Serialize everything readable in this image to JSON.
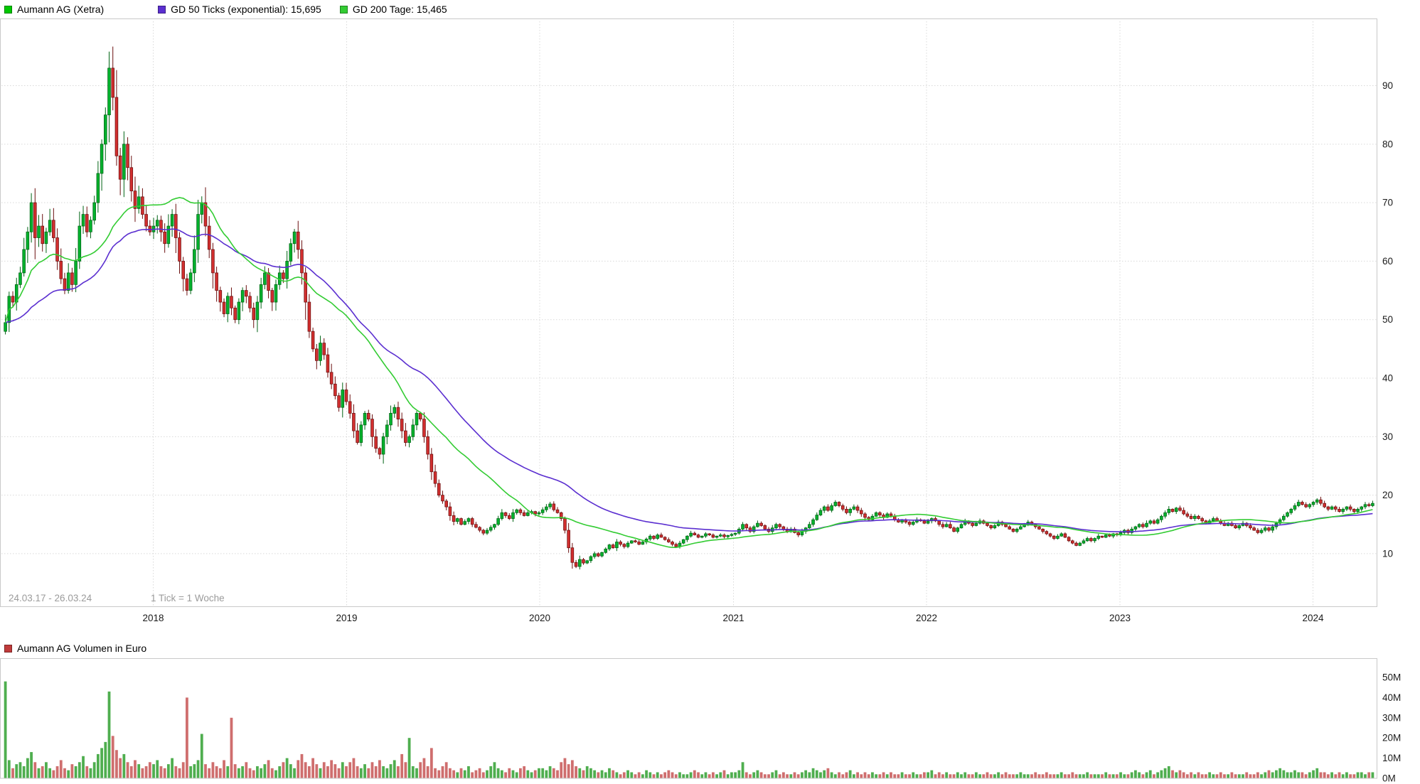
{
  "legend": {
    "items": [
      {
        "label": "Aumann AG (Xetra)",
        "color": "#00c800"
      },
      {
        "label": "GD 50 Ticks (exponential): 15,695",
        "color": "#5b2fd0"
      },
      {
        "label": "GD 200 Tage: 15,465",
        "color": "#33cc33"
      }
    ]
  },
  "volume_legend": {
    "label": "Aumann AG Volumen in Euro",
    "color": "#c03a3a"
  },
  "chart_data": {
    "type": "candlestick",
    "title": "Aumann AG (Xetra)",
    "series_name": "Aumann AG (Xetra)",
    "period_label": "24.03.17 - 26.03.24",
    "tick_label": "1 Tick = 1 Woche",
    "x_unit": "1 candle = 1 week",
    "year_labels": [
      "2018",
      "2019",
      "2020",
      "2021",
      "2022",
      "2023",
      "2024"
    ],
    "year_week_positions": [
      40.4,
      92.6,
      144.7,
      197.0,
      249.1,
      301.3,
      353.4
    ],
    "price_axis": {
      "ticks": [
        10,
        20,
        30,
        40,
        50,
        60,
        70,
        80,
        90
      ],
      "min": 1,
      "max": 101
    },
    "volume_axis": {
      "tick_labels": [
        "0M",
        "10M",
        "20M",
        "30M",
        "40M",
        "50M"
      ],
      "max_millions": 50
    },
    "indicators": [
      {
        "name": "GD 50 Ticks (exponential)",
        "legend_value": "15,695",
        "color": "#5b2fd0",
        "type": "ema",
        "period_weeks": 50
      },
      {
        "name": "GD 200 Tage",
        "legend_value": "15,465",
        "color": "#33cc33",
        "type": "sma",
        "period_weeks": 29
      }
    ],
    "candle_colors": {
      "up": "#00b22d",
      "down": "#d22f2f",
      "up_stroke": "#006414",
      "down_stroke": "#6b0f0f"
    },
    "volume_colors": {
      "up": "#4fae4f",
      "down": "#cf6e6e"
    },
    "volume_series_name": "Aumann AG Volumen in Euro",
    "first_open": 48,
    "weekly_closes": [
      49.5,
      54,
      53,
      56,
      58,
      62,
      65,
      70,
      64,
      66,
      63,
      65,
      67,
      64,
      60,
      57,
      55,
      58,
      56,
      60,
      66,
      68,
      65,
      67,
      70,
      75,
      80,
      85,
      93,
      88,
      78,
      74,
      80,
      76,
      72,
      69,
      71,
      68,
      66,
      65,
      66,
      67,
      65,
      63,
      66,
      68,
      64,
      60,
      57,
      55,
      58,
      62,
      68,
      70,
      66,
      62,
      58,
      55,
      53,
      51,
      54,
      52,
      50,
      53,
      55,
      54,
      52,
      50,
      53,
      56,
      58,
      55,
      53,
      56,
      58,
      57,
      60,
      63,
      65,
      62,
      58,
      53,
      48,
      45,
      43,
      46,
      44,
      41,
      39,
      37,
      35,
      38,
      36,
      34,
      31,
      29,
      32,
      34,
      33,
      30,
      28,
      27,
      30,
      32,
      34,
      35,
      33,
      31,
      29,
      30,
      32,
      34,
      33,
      30,
      27,
      24,
      22,
      20,
      19,
      18,
      16.5,
      15.5,
      16,
      15,
      15.5,
      16,
      15,
      14.5,
      14,
      13.5,
      14,
      14.5,
      15,
      16,
      17,
      16.5,
      16,
      17,
      17.5,
      17,
      16.5,
      17,
      17.2,
      16.8,
      17,
      17.5,
      18,
      18.5,
      17.5,
      17,
      16,
      14,
      11,
      8.5,
      7.8,
      9,
      8.4,
      8.8,
      9.5,
      10,
      9.6,
      10.2,
      10.8,
      11.5,
      11,
      12,
      11.6,
      11.2,
      11.8,
      12.2,
      12,
      11.6,
      12,
      12.5,
      13,
      12.6,
      13.2,
      12.8,
      12.4,
      12,
      11.6,
      11.2,
      11.8,
      12.4,
      13,
      13.5,
      13.2,
      12.8,
      13,
      13.4,
      13.2,
      12.8,
      13,
      13.2,
      12.9,
      13.1,
      13.3,
      13.5,
      14.2,
      15,
      14.4,
      13.8,
      14.6,
      15.2,
      14.8,
      14.2,
      13.8,
      14.4,
      15,
      14.6,
      14.2,
      13.8,
      14.2,
      13.6,
      13.2,
      13.8,
      14.4,
      15,
      15.8,
      16.6,
      17.4,
      18,
      17.4,
      18.2,
      18.8,
      18.2,
      17.6,
      17,
      17.6,
      18,
      17.4,
      16.8,
      16.2,
      15.8,
      16.4,
      17,
      16.6,
      16.2,
      16.8,
      16.4,
      15.8,
      15.4,
      15.8,
      15.4,
      15,
      15.4,
      15.8,
      15.6,
      15.2,
      15.6,
      16,
      15.6,
      15,
      14.6,
      15,
      14.4,
      13.8,
      14.4,
      15,
      15.6,
      15.2,
      14.8,
      15.2,
      15.6,
      15.2,
      14.8,
      14.4,
      14.8,
      15.4,
      15,
      14.6,
      14.2,
      13.8,
      14.2,
      14.6,
      15,
      15.4,
      15,
      14.6,
      14.2,
      13.8,
      13.4,
      13,
      12.6,
      13,
      13.4,
      12.8,
      12.2,
      11.8,
      11.4,
      11.8,
      12.2,
      12.6,
      12.2,
      12.6,
      13,
      12.8,
      13.2,
      13,
      13.4,
      13.2,
      13.6,
      14,
      13.6,
      14.2,
      14.6,
      15,
      14.6,
      15.2,
      15.6,
      15.2,
      15.8,
      16.4,
      17,
      17.6,
      17.2,
      17.8,
      17.4,
      16.8,
      16.4,
      16,
      16.4,
      16,
      15.6,
      15.2,
      15.6,
      16,
      15.6,
      15.2,
      14.8,
      15.2,
      14.8,
      14.4,
      14.8,
      15.2,
      14.8,
      14.4,
      14,
      13.6,
      14,
      14.4,
      14,
      14.6,
      15.2,
      15.8,
      16.4,
      17,
      17.6,
      18.2,
      18.8,
      18.4,
      18,
      18.4,
      18.8,
      19.2,
      18.6,
      18,
      17.6,
      18,
      17.6,
      17.2,
      17.6,
      18,
      17.6,
      17.2,
      17.6,
      18,
      18.4,
      18.2,
      18.6
    ],
    "weekly_volumes_millions": [
      48,
      9,
      5,
      7,
      8,
      6,
      10,
      13,
      8,
      5,
      6,
      8,
      5,
      4,
      6,
      9,
      5,
      4,
      7,
      6,
      8,
      11,
      6,
      5,
      8,
      12,
      15,
      18,
      43,
      21,
      14,
      10,
      12,
      8,
      6,
      9,
      7,
      5,
      6,
      8,
      7,
      9,
      6,
      5,
      7,
      10,
      6,
      5,
      8,
      40,
      6,
      7,
      9,
      22,
      7,
      5,
      8,
      6,
      5,
      9,
      6,
      30,
      7,
      5,
      6,
      8,
      5,
      4,
      6,
      5,
      7,
      9,
      5,
      4,
      6,
      8,
      10,
      7,
      5,
      9,
      12,
      8,
      6,
      10,
      7,
      5,
      8,
      6,
      9,
      7,
      5,
      8,
      6,
      8,
      10,
      6,
      5,
      7,
      5,
      8,
      6,
      9,
      6,
      5,
      7,
      9,
      6,
      12,
      8,
      20,
      6,
      5,
      8,
      10,
      6,
      15,
      5,
      4,
      6,
      8,
      5,
      4,
      3,
      5,
      4,
      6,
      3,
      4,
      5,
      3,
      4,
      6,
      8,
      5,
      4,
      3,
      5,
      4,
      3,
      5,
      6,
      4,
      3,
      4,
      5,
      5,
      4,
      6,
      5,
      4,
      8,
      10,
      7,
      9,
      6,
      5,
      4,
      6,
      5,
      4,
      3,
      4,
      3,
      5,
      4,
      3,
      2,
      3,
      4,
      3,
      2,
      3,
      2,
      4,
      3,
      2,
      3,
      2,
      3,
      4,
      3,
      2,
      3,
      2,
      2,
      3,
      4,
      3,
      2,
      3,
      2,
      3,
      2,
      3,
      4,
      2,
      3,
      3,
      4,
      8,
      3,
      2,
      3,
      4,
      3,
      2,
      2,
      3,
      4,
      2,
      3,
      2,
      2,
      3,
      2,
      3,
      4,
      3,
      5,
      4,
      3,
      4,
      5,
      3,
      2,
      3,
      2,
      3,
      4,
      2,
      3,
      2,
      3,
      2,
      3,
      2,
      2,
      3,
      2,
      3,
      2,
      2,
      3,
      2,
      2,
      3,
      2,
      2,
      3,
      3,
      4,
      2,
      3,
      2,
      3,
      2,
      2,
      3,
      2,
      3,
      2,
      2,
      3,
      2,
      2,
      3,
      2,
      2,
      3,
      2,
      3,
      2,
      2,
      2,
      3,
      2,
      2,
      2,
      3,
      2,
      2,
      3,
      2,
      2,
      2,
      3,
      2,
      2,
      3,
      2,
      2,
      2,
      3,
      2,
      2,
      2,
      2,
      3,
      2,
      2,
      2,
      3,
      2,
      2,
      3,
      4,
      3,
      2,
      3,
      4,
      2,
      3,
      4,
      5,
      6,
      4,
      3,
      4,
      3,
      2,
      3,
      2,
      3,
      2,
      2,
      3,
      2,
      2,
      3,
      2,
      2,
      3,
      2,
      2,
      2,
      3,
      2,
      2,
      3,
      2,
      3,
      4,
      3,
      4,
      5,
      4,
      3,
      3,
      4,
      3,
      3,
      2,
      3,
      4,
      5,
      3,
      3,
      2,
      3,
      2,
      3,
      2,
      3,
      2,
      2,
      3,
      3,
      2,
      3,
      3
    ]
  }
}
